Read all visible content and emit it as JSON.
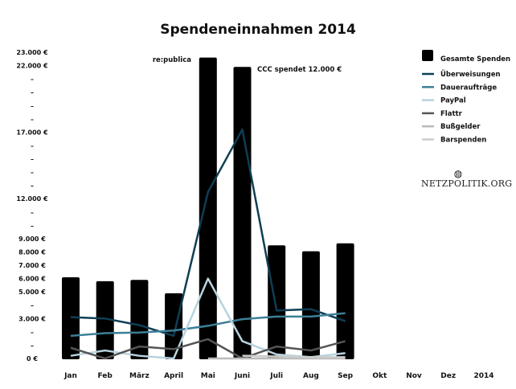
{
  "chart_data": {
    "type": "bar",
    "title": "Spendeneinnahmen 2014",
    "xlabel": "",
    "ylabel": "",
    "ylim": [
      0,
      23000
    ],
    "categories": [
      "Jan",
      "Feb",
      "März",
      "April",
      "Mai",
      "Juni",
      "Juli",
      "Aug",
      "Sep",
      "Okt",
      "Nov",
      "Dez",
      "2014"
    ],
    "y_ticks": [
      {
        "value": 0,
        "label": "0 €"
      },
      {
        "value": 1000,
        "label": "–"
      },
      {
        "value": 2000,
        "label": "–"
      },
      {
        "value": 3000,
        "label": "3.000 €"
      },
      {
        "value": 4000,
        "label": "–"
      },
      {
        "value": 5000,
        "label": "5.000 €"
      },
      {
        "value": 6000,
        "label": "6.000 €"
      },
      {
        "value": 7000,
        "label": "7.000 €"
      },
      {
        "value": 8000,
        "label": "8.000 €"
      },
      {
        "value": 9000,
        "label": "9.000 €"
      },
      {
        "value": 10000,
        "label": "–"
      },
      {
        "value": 11000,
        "label": "–"
      },
      {
        "value": 12000,
        "label": "12.000 €"
      },
      {
        "value": 13000,
        "label": "–"
      },
      {
        "value": 14000,
        "label": "–"
      },
      {
        "value": 15000,
        "label": "–"
      },
      {
        "value": 16000,
        "label": "–"
      },
      {
        "value": 17000,
        "label": "17.000 €"
      },
      {
        "value": 18000,
        "label": "–"
      },
      {
        "value": 19000,
        "label": "–"
      },
      {
        "value": 20000,
        "label": "–"
      },
      {
        "value": 21000,
        "label": "–"
      },
      {
        "value": 22000,
        "label": "22.000 €"
      },
      {
        "value": 23000,
        "label": "23.000 €"
      }
    ],
    "bars": {
      "name": "Gesamte Spenden",
      "color": "#000000",
      "values": [
        6100,
        5800,
        5900,
        4900,
        22600,
        21900,
        8500,
        8050,
        8650,
        null,
        null,
        null,
        null
      ]
    },
    "series": [
      {
        "name": "Überweisungen",
        "color": "#0e3f55",
        "values": [
          3100,
          3000,
          2500,
          1700,
          12500,
          17200,
          3600,
          3700,
          2800,
          null,
          null,
          null,
          null
        ]
      },
      {
        "name": "Daueraufträge",
        "color": "#3d7f98",
        "values": [
          1700,
          1900,
          1950,
          2100,
          2450,
          2950,
          3150,
          3150,
          3400,
          null,
          null,
          null,
          null
        ]
      },
      {
        "name": "PayPal",
        "color": "#b8d3df",
        "values": [
          200,
          600,
          200,
          0,
          6000,
          1300,
          300,
          100,
          400,
          null,
          null,
          null,
          null
        ]
      },
      {
        "name": "Flattr",
        "color": "#555555",
        "values": [
          800,
          0,
          900,
          700,
          1450,
          0,
          900,
          600,
          1300,
          null,
          null,
          null,
          null
        ]
      },
      {
        "name": "Bußgelder",
        "color": "#bbbbbb",
        "values": [
          null,
          null,
          null,
          null,
          0,
          0,
          0,
          0,
          0,
          null,
          null,
          null,
          null
        ]
      },
      {
        "name": "Barspenden",
        "color": "#cccccc",
        "values": [
          null,
          null,
          null,
          null,
          null,
          200,
          150,
          100,
          100,
          null,
          null,
          null,
          null
        ]
      }
    ],
    "annotations": [
      {
        "text": "re:publica",
        "category": "Mai"
      },
      {
        "text": "CCC spendet 12.000 €",
        "category": "Juni"
      }
    ],
    "legend_position": "top-right",
    "grid": false
  },
  "branding": {
    "logo_text": "NETZPOLITIK.ORG",
    "logo_icon": "globe-icon"
  }
}
